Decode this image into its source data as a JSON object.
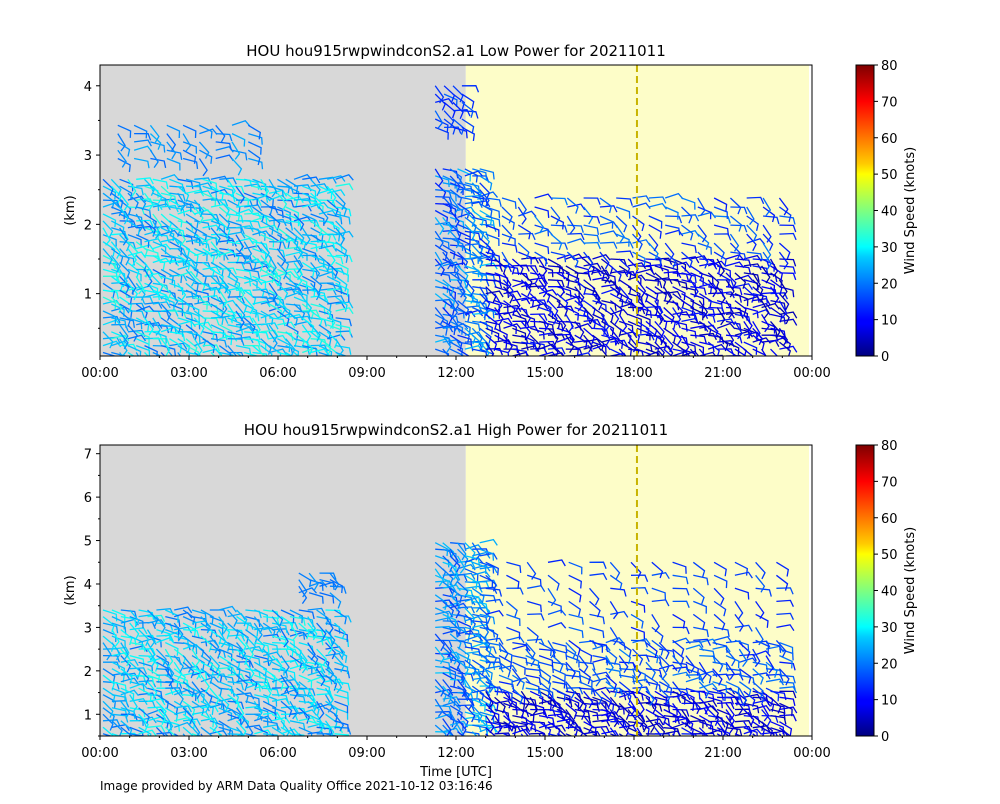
{
  "chart_data": [
    {
      "type": "wind-barb",
      "title": "HOU hou915rwpwindconS2.a1 Low Power for 20211011",
      "ylabel": "(km)",
      "xlabel": "",
      "x_ticks": [
        "00:00",
        "03:00",
        "06:00",
        "09:00",
        "12:00",
        "15:00",
        "18:00",
        "21:00",
        "00:00"
      ],
      "x_range_hours": [
        0,
        24
      ],
      "y_ticks": [
        1,
        2,
        3,
        4
      ],
      "ylim": [
        0.1,
        4.3
      ],
      "colorbar": {
        "label": "Wind Speed (knots)",
        "ticks": [
          0,
          10,
          20,
          30,
          40,
          50,
          60,
          70,
          80
        ],
        "range": [
          0,
          80
        ],
        "colormap": "jet"
      },
      "missing_data_hours": [
        0,
        12.33
      ],
      "missing_color": "#d8d8d8",
      "highlight_hours": [
        12.33,
        24
      ],
      "highlight_color": "#fdfdc8",
      "vline_hour": 18.1,
      "vline_color": "#c8b400",
      "data_blocks": [
        {
          "t0": 0.1,
          "t1": 8,
          "dt": 0.28,
          "h0": 0.15,
          "h1": 2.7,
          "dh": 0.1,
          "speed": [
            18,
            33
          ]
        },
        {
          "t0": 0.6,
          "t1": 5,
          "dt": 0.55,
          "h0": 2.95,
          "h1": 3.45,
          "dh": 0.12,
          "speed": [
            18,
            24
          ]
        },
        {
          "t0": 11.3,
          "t1": 13,
          "dt": 0.25,
          "h0": 0.2,
          "h1": 2.8,
          "dh": 0.1,
          "speed": [
            12,
            25
          ]
        },
        {
          "t0": 11.3,
          "t1": 12.3,
          "dt": 0.3,
          "h0": 3.4,
          "h1": 4.1,
          "dh": 0.12,
          "speed": [
            12,
            18
          ]
        },
        {
          "t0": 13,
          "t1": 23,
          "dt": 0.3,
          "h0": 0.1,
          "h1": 1.55,
          "dh": 0.1,
          "speed": [
            4,
            12
          ]
        },
        {
          "t0": 13,
          "t1": 23,
          "dt": 0.55,
          "h0": 1.6,
          "h1": 2.45,
          "dh": 0.13,
          "speed": [
            12,
            20
          ]
        }
      ]
    },
    {
      "type": "wind-barb",
      "title": "HOU hou915rwpwindconS2.a1 High Power for 20211011",
      "ylabel": "(km)",
      "xlabel": "Time [UTC]",
      "x_ticks": [
        "00:00",
        "03:00",
        "06:00",
        "09:00",
        "12:00",
        "15:00",
        "18:00",
        "21:00",
        "00:00"
      ],
      "x_range_hours": [
        0,
        24
      ],
      "y_ticks": [
        1,
        2,
        3,
        4,
        5,
        6,
        7
      ],
      "ylim": [
        0.5,
        7.2
      ],
      "colorbar": {
        "label": "Wind Speed (knots)",
        "ticks": [
          0,
          10,
          20,
          30,
          40,
          50,
          60,
          70,
          80
        ],
        "range": [
          0,
          80
        ],
        "colormap": "jet"
      },
      "missing_data_hours": [
        0,
        12.33
      ],
      "missing_color": "#d8d8d8",
      "highlight_hours": [
        12.33,
        24
      ],
      "highlight_color": "#fdfdc8",
      "vline_hour": 18.1,
      "vline_color": "#c8b400",
      "data_blocks": [
        {
          "t0": 0.1,
          "t1": 8,
          "dt": 0.3,
          "h0": 0.55,
          "h1": 3.4,
          "dh": 0.15,
          "speed": [
            18,
            32
          ]
        },
        {
          "t0": 6.7,
          "t1": 8,
          "dt": 0.35,
          "h0": 3.8,
          "h1": 4.25,
          "dh": 0.15,
          "speed": [
            18,
            22
          ]
        },
        {
          "t0": 11.3,
          "t1": 13,
          "dt": 0.25,
          "h0": 0.6,
          "h1": 5.0,
          "dh": 0.15,
          "speed": [
            14,
            26
          ]
        },
        {
          "t0": 13,
          "t1": 23,
          "dt": 0.3,
          "h0": 0.55,
          "h1": 1.6,
          "dh": 0.14,
          "speed": [
            4,
            12
          ]
        },
        {
          "t0": 13,
          "t1": 23,
          "dt": 0.45,
          "h0": 1.6,
          "h1": 2.7,
          "dh": 0.15,
          "speed": [
            12,
            20
          ]
        },
        {
          "t0": 13,
          "t1": 23,
          "dt": 0.7,
          "h0": 2.7,
          "h1": 4.5,
          "dh": 0.3,
          "speed": [
            12,
            18
          ]
        }
      ]
    }
  ],
  "footer": {
    "credit": "Image provided by ARM Data Quality Office 2021-10-12 03:16:46",
    "credit_color": "#b22222"
  }
}
